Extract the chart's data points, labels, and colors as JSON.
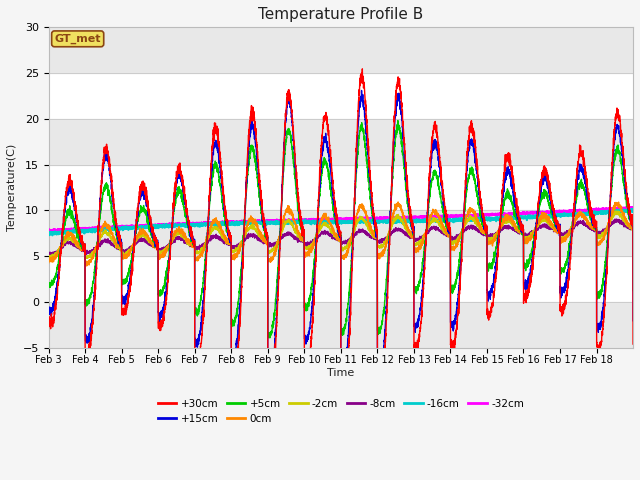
{
  "title": "Temperature Profile B",
  "xlabel": "Time",
  "ylabel": "Temperature(C)",
  "ylim": [
    -5,
    30
  ],
  "background_color": "#f5f5f5",
  "plot_bg_color": "#ffffff",
  "annotation_text": "GT_met",
  "annotation_color": "#8B4513",
  "annotation_bg": "#f0e060",
  "series": {
    "+30cm": {
      "color": "#ff0000",
      "lw": 1.0
    },
    "+15cm": {
      "color": "#0000dd",
      "lw": 1.0
    },
    "+5cm": {
      "color": "#00cc00",
      "lw": 1.0
    },
    "0cm": {
      "color": "#ff8800",
      "lw": 1.0
    },
    "-2cm": {
      "color": "#cccc00",
      "lw": 1.0
    },
    "-8cm": {
      "color": "#880088",
      "lw": 1.0
    },
    "-16cm": {
      "color": "#00cccc",
      "lw": 1.5
    },
    "-32cm": {
      "color": "#ff00ff",
      "lw": 1.5
    }
  },
  "x_tick_labels": [
    "Feb 3",
    "Feb 4",
    "Feb 5",
    "Feb 6",
    "Feb 7",
    "Feb 8",
    "Feb 9",
    "Feb 10",
    "Feb 11",
    "Feb 12",
    "Feb 13",
    "Feb 14",
    "Feb 15",
    "Feb 16",
    "Feb 17",
    "Feb 18"
  ],
  "yticks": [
    -5,
    0,
    5,
    10,
    15,
    20,
    25,
    30
  ],
  "figsize": [
    6.4,
    4.8
  ],
  "dpi": 100
}
